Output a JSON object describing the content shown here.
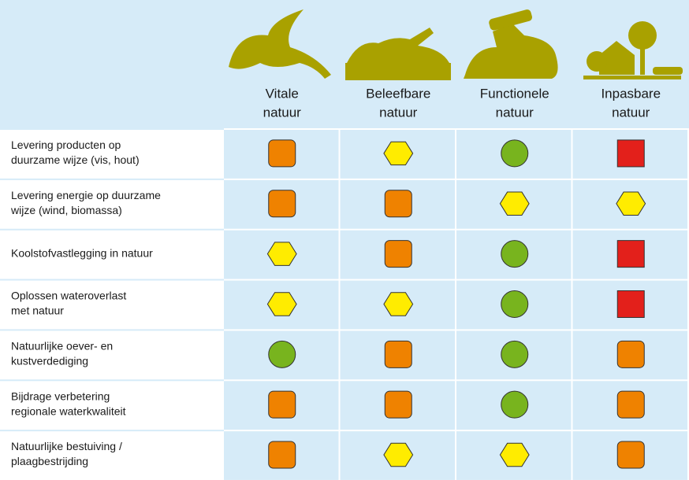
{
  "header": {
    "columns": [
      [
        "Vitale",
        "natuur"
      ],
      [
        "Beleefbare",
        "natuur"
      ],
      [
        "Functionele",
        "natuur"
      ],
      [
        "Inpasbare",
        "natuur"
      ]
    ]
  },
  "rows": [
    {
      "label": [
        "Levering producten op",
        "duurzame wijze (vis, hout)"
      ],
      "cells": [
        {
          "shape": "rounded-square",
          "color": "#ef8200"
        },
        {
          "shape": "hexagon",
          "color": "#ffec00"
        },
        {
          "shape": "circle",
          "color": "#78b41e"
        },
        {
          "shape": "square",
          "color": "#e3201b"
        }
      ]
    },
    {
      "label": [
        "Levering energie op duurzame",
        "wijze (wind, biomassa)"
      ],
      "cells": [
        {
          "shape": "rounded-square",
          "color": "#ef8200"
        },
        {
          "shape": "rounded-square",
          "color": "#ef8200"
        },
        {
          "shape": "hexagon",
          "color": "#ffec00"
        },
        {
          "shape": "hexagon",
          "color": "#ffec00"
        }
      ]
    },
    {
      "label": [
        "Koolstofvastlegging in natuur"
      ],
      "cells": [
        {
          "shape": "hexagon",
          "color": "#ffec00"
        },
        {
          "shape": "rounded-square",
          "color": "#ef8200"
        },
        {
          "shape": "circle",
          "color": "#78b41e"
        },
        {
          "shape": "square",
          "color": "#e3201b"
        }
      ]
    },
    {
      "label": [
        "Oplossen wateroverlast",
        "met natuur"
      ],
      "cells": [
        {
          "shape": "hexagon",
          "color": "#ffec00"
        },
        {
          "shape": "hexagon",
          "color": "#ffec00"
        },
        {
          "shape": "circle",
          "color": "#78b41e"
        },
        {
          "shape": "square",
          "color": "#e3201b"
        }
      ]
    },
    {
      "label": [
        "Natuurlijke oever- en",
        "kustverdediging"
      ],
      "cells": [
        {
          "shape": "circle",
          "color": "#78b41e"
        },
        {
          "shape": "rounded-square",
          "color": "#ef8200"
        },
        {
          "shape": "circle",
          "color": "#78b41e"
        },
        {
          "shape": "rounded-square",
          "color": "#ef8200"
        }
      ]
    },
    {
      "label": [
        "Bijdrage verbetering",
        "regionale waterkwaliteit"
      ],
      "cells": [
        {
          "shape": "rounded-square",
          "color": "#ef8200"
        },
        {
          "shape": "rounded-square",
          "color": "#ef8200"
        },
        {
          "shape": "circle",
          "color": "#78b41e"
        },
        {
          "shape": "rounded-square",
          "color": "#ef8200"
        }
      ]
    },
    {
      "label": [
        "Natuurlijke bestuiving /",
        "plaagbestrijding"
      ],
      "cells": [
        {
          "shape": "rounded-square",
          "color": "#ef8200"
        },
        {
          "shape": "hexagon",
          "color": "#ffec00"
        },
        {
          "shape": "hexagon",
          "color": "#ffec00"
        },
        {
          "shape": "rounded-square",
          "color": "#ef8200"
        }
      ]
    }
  ]
}
